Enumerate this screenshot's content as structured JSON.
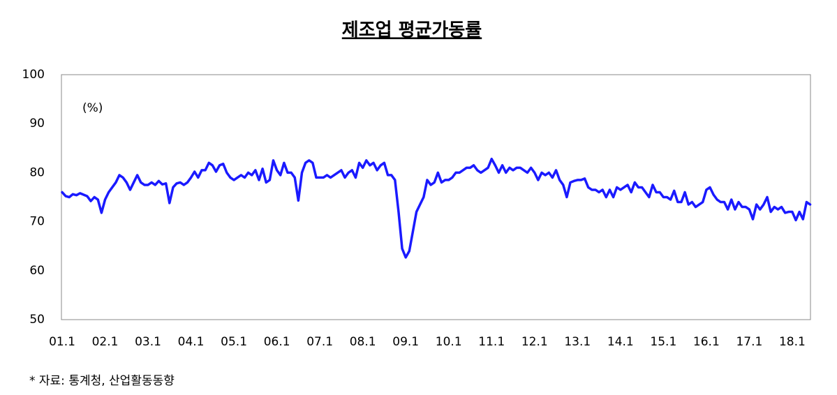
{
  "chart_data": {
    "type": "line",
    "title": "제조업 평균가동률",
    "unit_label": "(%)",
    "source": "* 자료: 통계청, 산업활동동향",
    "color": "#1a1aff",
    "categories": [
      "01.1",
      null,
      null,
      null,
      null,
      null,
      null,
      null,
      null,
      null,
      null,
      null,
      "02.1",
      null,
      null,
      null,
      null,
      null,
      null,
      null,
      null,
      null,
      null,
      null,
      "03.1",
      null,
      null,
      null,
      null,
      null,
      null,
      null,
      null,
      null,
      null,
      null,
      "04.1",
      null,
      null,
      null,
      null,
      null,
      null,
      null,
      null,
      null,
      null,
      null,
      "05.1",
      null,
      null,
      null,
      null,
      null,
      null,
      null,
      null,
      null,
      null,
      null,
      "06.1",
      null,
      null,
      null,
      null,
      null,
      null,
      null,
      null,
      null,
      null,
      null,
      "07.1",
      null,
      null,
      null,
      null,
      null,
      null,
      null,
      null,
      null,
      null,
      null,
      "08.1",
      null,
      null,
      null,
      null,
      null,
      null,
      null,
      null,
      null,
      null,
      null,
      "09.1",
      null,
      null,
      null,
      null,
      null,
      null,
      null,
      null,
      null,
      null,
      null,
      "10.1",
      null,
      null,
      null,
      null,
      null,
      null,
      null,
      null,
      null,
      null,
      null,
      "11.1",
      null,
      null,
      null,
      null,
      null,
      null,
      null,
      null,
      null,
      null,
      null,
      "12.1",
      null,
      null,
      null,
      null,
      null,
      null,
      null,
      null,
      null,
      null,
      null,
      "13.1",
      null,
      null,
      null,
      null,
      null,
      null,
      null,
      null,
      null,
      null,
      null,
      "14.1",
      null,
      null,
      null,
      null,
      null,
      null,
      null,
      null,
      null,
      null,
      null,
      "15.1",
      null,
      null,
      null,
      null,
      null,
      null,
      null,
      null,
      null,
      null,
      null,
      "16.1",
      null,
      null,
      null,
      null,
      null,
      null,
      null,
      null,
      null,
      null,
      null,
      "17.1",
      null,
      null,
      null,
      null,
      null,
      null,
      null,
      null,
      null,
      null,
      null,
      "18.1",
      null,
      null,
      null,
      null,
      null
    ],
    "values": [
      76,
      75.2,
      75,
      75.6,
      75.4,
      75.8,
      75.5,
      75.2,
      74.2,
      75,
      74.5,
      71.8,
      74.5,
      76,
      77,
      78,
      79.5,
      79,
      78,
      76.5,
      78,
      79.5,
      78,
      77.5,
      77.5,
      78,
      77.5,
      78.3,
      77.6,
      77.8,
      73.8,
      77,
      77.8,
      78,
      77.5,
      78,
      79,
      80.2,
      79,
      80.5,
      80.5,
      82,
      81.5,
      80.2,
      81.5,
      81.8,
      80,
      79,
      78.5,
      79,
      79.5,
      79,
      80,
      79.5,
      80.5,
      78.5,
      80.8,
      78,
      78.5,
      82.5,
      80.5,
      79.5,
      82,
      80,
      80,
      79,
      74.3,
      80,
      82,
      82.5,
      82,
      79,
      79,
      79,
      79.5,
      79,
      79.5,
      80,
      80.5,
      79,
      80,
      80.5,
      79,
      82,
      81,
      82.5,
      81.5,
      82,
      80.5,
      81.5,
      82,
      79.5,
      79.5,
      78.5,
      72,
      64.5,
      62.7,
      64,
      68,
      72,
      73.5,
      75,
      78.5,
      77.5,
      78,
      80,
      78,
      78.5,
      78.5,
      79,
      80,
      80,
      80.5,
      81,
      81,
      81.5,
      80.5,
      80,
      80.5,
      81,
      82.8,
      81.5,
      80,
      81.5,
      80,
      81,
      80.5,
      81,
      81,
      80.5,
      80,
      81,
      80,
      78.5,
      80,
      79.5,
      80,
      79,
      80.5,
      78.5,
      77.5,
      75,
      78,
      78.3,
      78.5,
      78.5,
      78.8,
      77,
      76.5,
      76.5,
      76,
      76.5,
      75,
      76.5,
      75,
      77,
      76.5,
      77,
      77.5,
      76,
      78,
      77,
      77,
      76,
      75,
      77.5,
      76,
      76,
      75,
      75,
      74.5,
      76.3,
      74,
      74,
      76,
      73.5,
      74,
      73,
      73.5,
      74,
      76.5,
      77,
      75.5,
      74.5,
      74,
      74,
      72.5,
      74.5,
      72.5,
      74,
      73,
      73,
      72.5,
      70.5,
      73.5,
      72.5,
      73.5,
      75,
      72,
      73,
      72.5,
      73,
      71.8,
      72,
      72,
      70.3,
      72,
      70.5,
      74,
      73.5
    ],
    "ylim": [
      50,
      100
    ],
    "yticks": [
      50,
      60,
      70,
      80,
      90,
      100
    ],
    "grid": false
  }
}
